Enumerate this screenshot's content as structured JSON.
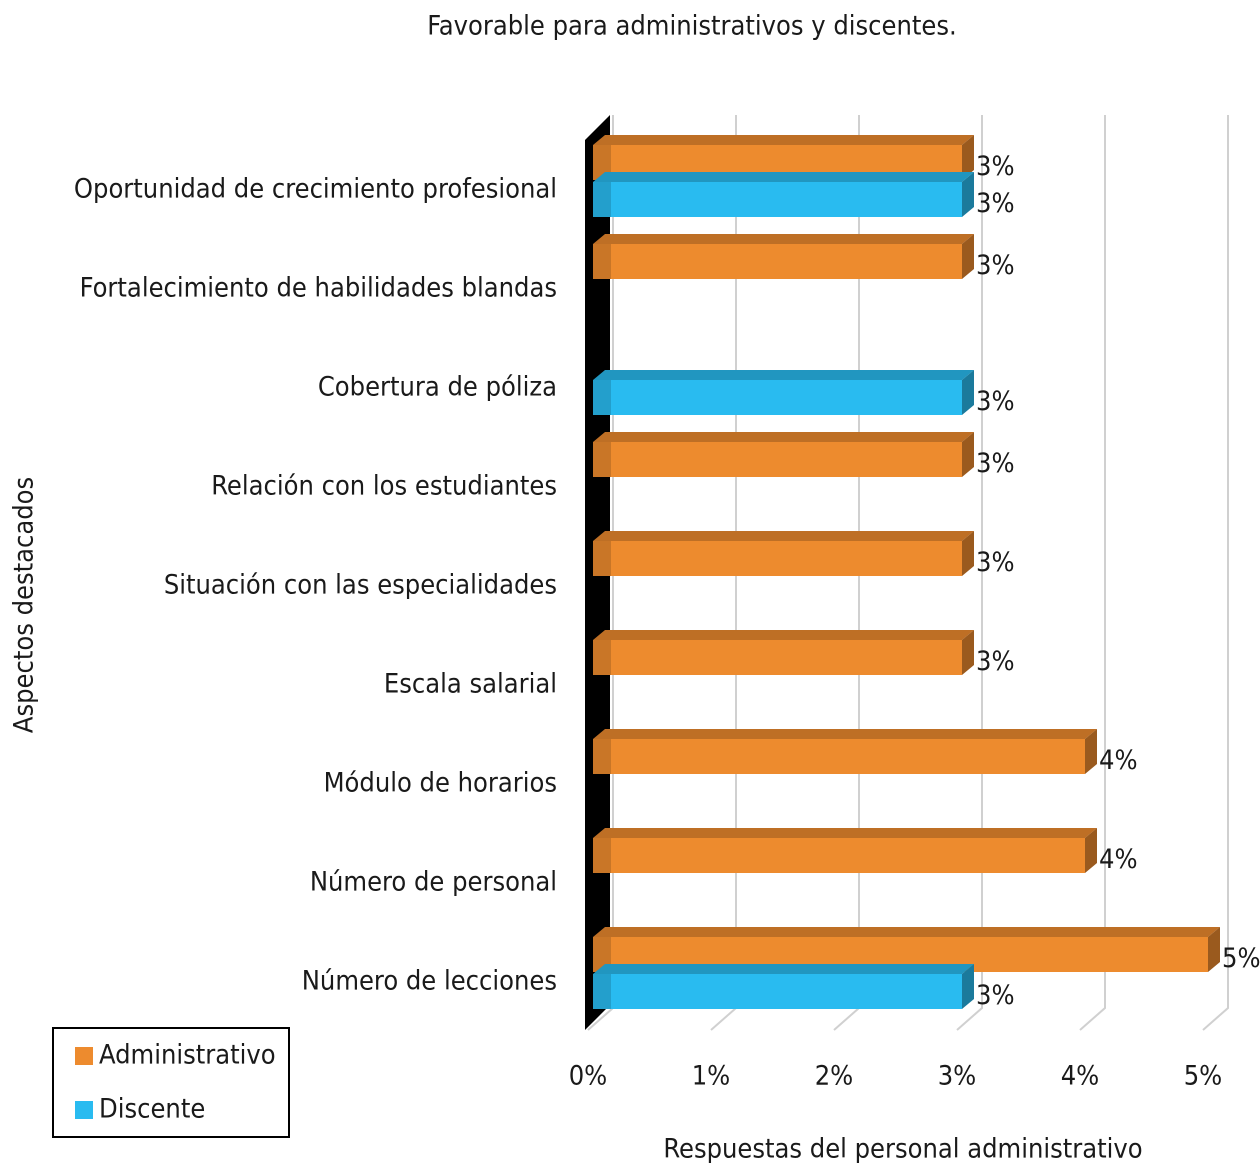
{
  "chart_data": {
    "type": "bar",
    "orientation": "horizontal",
    "title": "Favorable para administrativos y discentes.",
    "xlabel": "Respuestas del personal administrativo",
    "ylabel": "Aspectos destacados",
    "categories": [
      "Oportunidad de crecimiento profesional",
      "Fortalecimiento de habilidades blandas",
      "Cobertura de póliza",
      "Relación con los estudiantes",
      "Situación con las especialidades",
      "Escala salarial",
      "Módulo de horarios",
      "Número de personal",
      "Número de lecciones"
    ],
    "series": [
      {
        "name": "Administrativo",
        "color": "#ed8b2e",
        "values": [
          3,
          3,
          null,
          3,
          3,
          3,
          4,
          4,
          5
        ],
        "value_labels": [
          "3%",
          "3%",
          null,
          "3%",
          "3%",
          "3%",
          "4%",
          "4%",
          "5%"
        ]
      },
      {
        "name": "Discente",
        "color": "#29bbf0",
        "values": [
          3,
          null,
          3,
          null,
          null,
          null,
          null,
          null,
          3
        ],
        "value_labels": [
          "3%",
          null,
          "3%",
          null,
          null,
          null,
          null,
          null,
          "3%"
        ]
      }
    ],
    "xlim": [
      0,
      5
    ],
    "xticks": [
      {
        "value": 0,
        "label": "0%"
      },
      {
        "value": 1,
        "label": "1%"
      },
      {
        "value": 2,
        "label": "2%"
      },
      {
        "value": 3,
        "label": "3%"
      },
      {
        "value": 4,
        "label": "4%"
      },
      {
        "value": 5,
        "label": "5%"
      }
    ],
    "grid": true,
    "legend": "lower left"
  }
}
